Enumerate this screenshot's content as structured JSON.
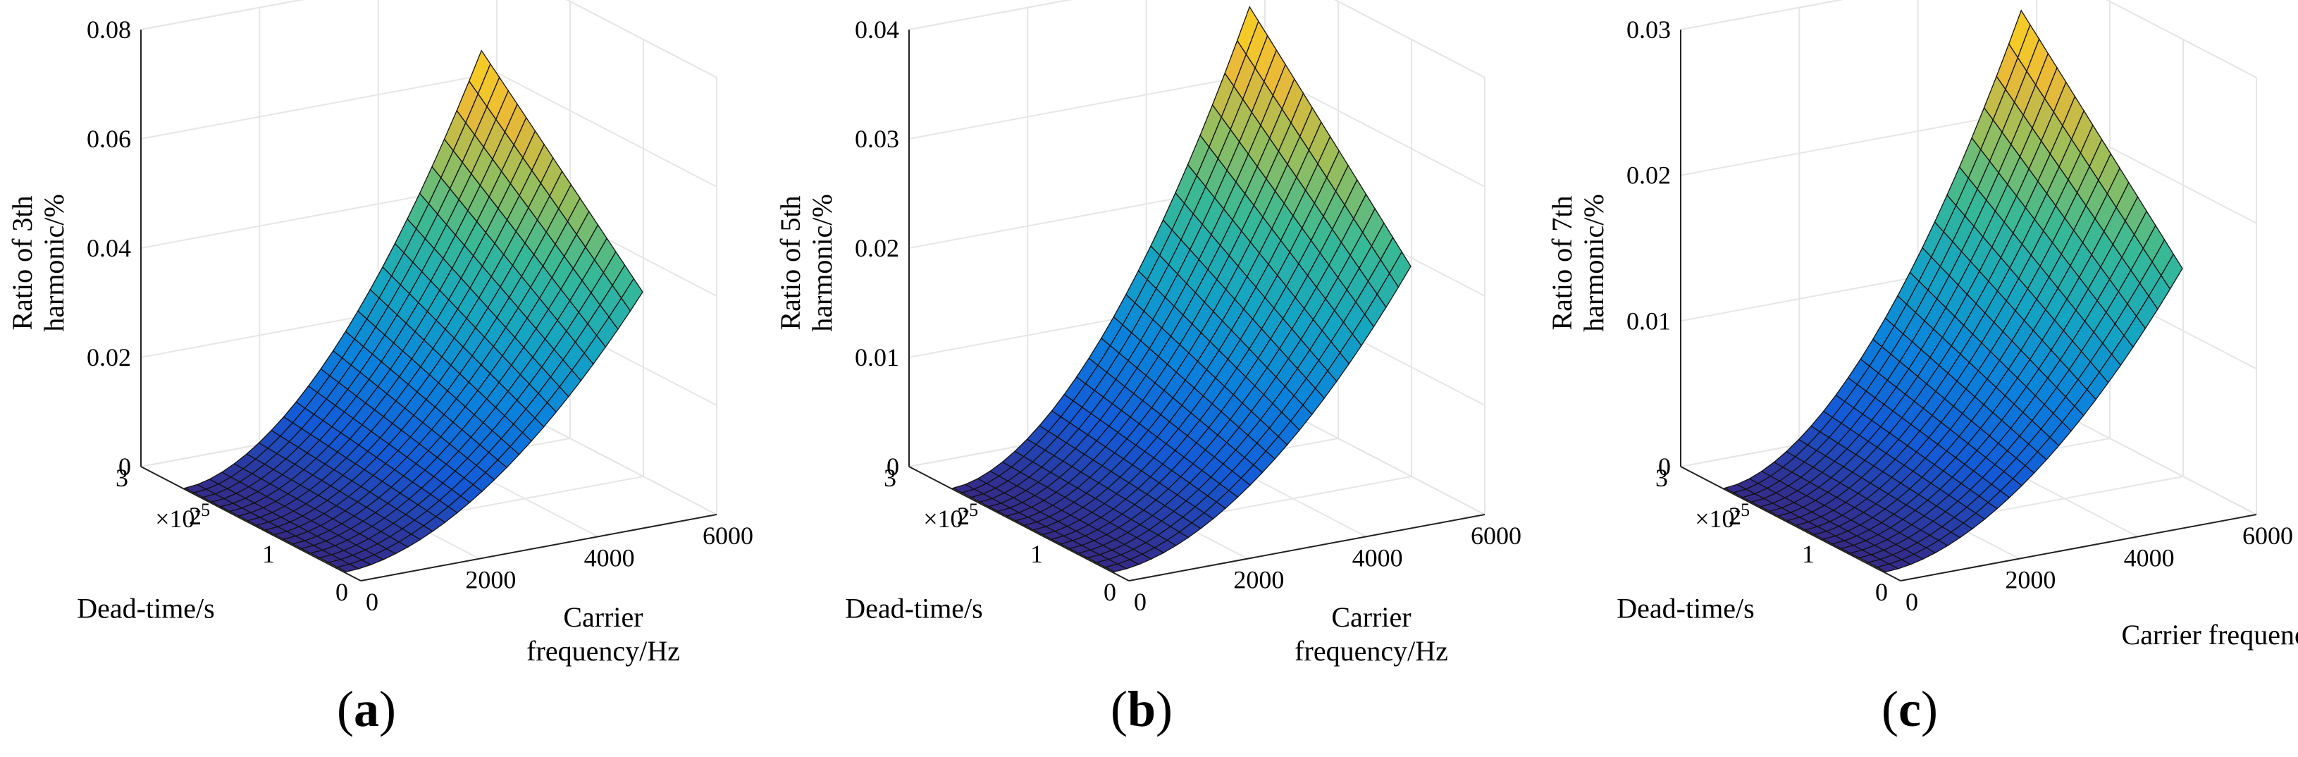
{
  "chart_data": [
    {
      "type": "surface",
      "panel_label": "a",
      "zlabel": [
        "Ratio of 3th",
        "harmonic/%"
      ],
      "xlabel": [
        "Carrier",
        "frequency/Hz"
      ],
      "ylabel": "Dead-time/s",
      "y_multiplier": "×10",
      "y_multiplier_exp": "-5",
      "x_ticks": [
        "0",
        "2000",
        "4000",
        "6000"
      ],
      "y_ticks": [
        "0",
        "1",
        "2",
        "3"
      ],
      "z_ticks": [
        "0",
        "0.02",
        "0.04",
        "0.06",
        "0.08"
      ],
      "xlim": [
        0,
        6000
      ],
      "ylim": [
        0,
        3e-05
      ],
      "zlim": [
        0,
        0.08
      ],
      "x_range": [
        0,
        5000
      ],
      "y_range": [
        2e-06,
        2.4e-05
      ],
      "z_max": 0.07,
      "grid": true
    },
    {
      "type": "surface",
      "panel_label": "b",
      "zlabel": [
        "Ratio of 5th",
        "harmonic/%"
      ],
      "xlabel": [
        "Carrier",
        "frequency/Hz"
      ],
      "ylabel": "Dead-time/s",
      "y_multiplier": "×10",
      "y_multiplier_exp": "-5",
      "x_ticks": [
        "0",
        "2000",
        "4000",
        "6000"
      ],
      "y_ticks": [
        "0",
        "1",
        "2",
        "3"
      ],
      "z_ticks": [
        "0",
        "0.01",
        "0.02",
        "0.03",
        "0.04"
      ],
      "xlim": [
        0,
        6000
      ],
      "ylim": [
        0,
        3e-05
      ],
      "zlim": [
        0,
        0.04
      ],
      "x_range": [
        0,
        5000
      ],
      "y_range": [
        2e-06,
        2.4e-05
      ],
      "z_max": 0.039,
      "grid": true
    },
    {
      "type": "surface",
      "panel_label": "c",
      "zlabel": [
        "Ratio of 7th",
        "harmonic/%"
      ],
      "xlabel": [
        "Carrier frequency/Hz"
      ],
      "ylabel": "Dead-time/s",
      "y_multiplier": "×10",
      "y_multiplier_exp": "-5",
      "x_ticks": [
        "0",
        "2000",
        "4000",
        "6000"
      ],
      "y_ticks": [
        "0",
        "1",
        "2",
        "3"
      ],
      "z_ticks": [
        "0",
        "0.01",
        "0.02",
        "0.03"
      ],
      "xlim": [
        0,
        6000
      ],
      "ylim": [
        0,
        3e-05
      ],
      "zlim": [
        0,
        0.03
      ],
      "x_range": [
        0,
        5000
      ],
      "y_range": [
        2e-06,
        2.4e-05
      ],
      "z_max": 0.029,
      "grid": true
    }
  ]
}
